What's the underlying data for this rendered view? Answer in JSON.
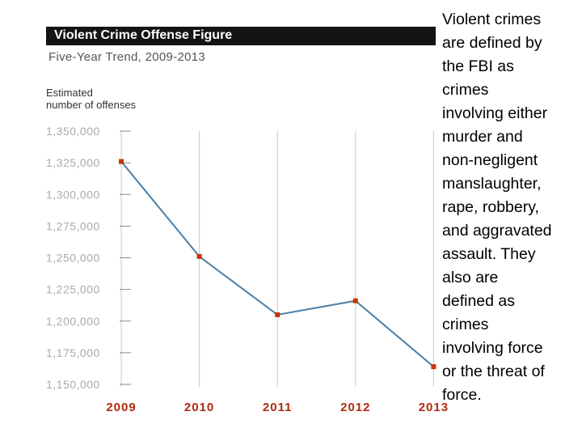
{
  "chart_data": {
    "type": "line",
    "title": "Violent Crime Offense Figure",
    "subtitle": "Five-Year Trend, 2009-2013",
    "ylabel_lines": [
      "Estimated",
      "number of offenses"
    ],
    "xlabel": "",
    "categories": [
      "2009",
      "2010",
      "2011",
      "2012",
      "2013"
    ],
    "series": [
      {
        "values": [
          1326000,
          1251000,
          1205000,
          1216000,
          1164000
        ]
      }
    ],
    "ylim": [
      1150000,
      1350000
    ],
    "yticks": [
      1350000,
      1325000,
      1300000,
      1275000,
      1250000,
      1225000,
      1200000,
      1175000,
      1150000
    ],
    "ytick_labels": [
      "1,350,000",
      "1,325,000",
      "1,300,000",
      "1,275,000",
      "1,250,000",
      "1,225,000",
      "1,200,000",
      "1,175,000",
      "1,150,000"
    ],
    "grid": "vertical",
    "colors": {
      "line": "#4a7fa8",
      "marker": "#cc3300",
      "xtick_label": "#b02a10",
      "ytick_label": "#aaaaaa",
      "grid": "#d8d0c0",
      "title_bar": "#141414"
    }
  },
  "side_text": {
    "lines": [
      "Violent crimes",
      "are defined by",
      "the FBI as",
      "crimes",
      "involving either",
      "murder and",
      "non-negligent",
      "manslaughter,",
      "rape, robbery,",
      "and aggravated",
      "assault.  They",
      "also are",
      "defined as",
      "crimes",
      "involving force",
      "or the threat of",
      "force."
    ]
  }
}
